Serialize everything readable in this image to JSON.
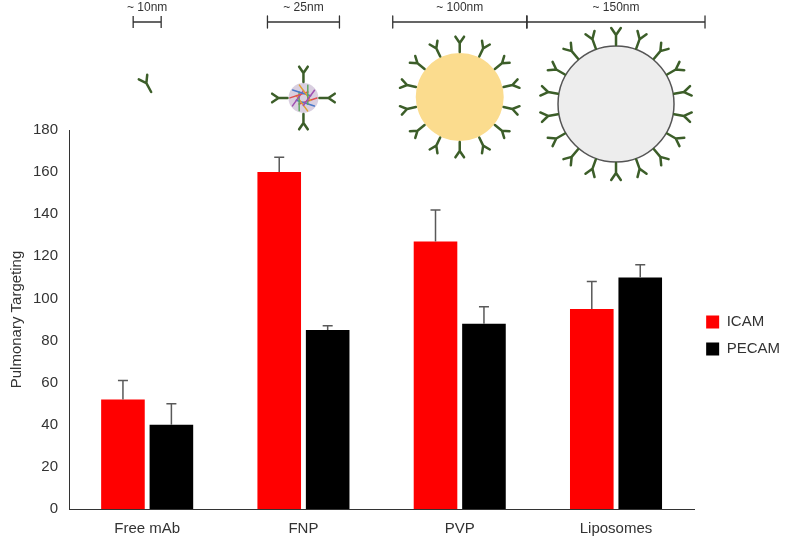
{
  "chart_data": {
    "type": "bar",
    "categories": [
      "Free mAb",
      "FNP",
      "PVP",
      "Liposomes"
    ],
    "y_label": "Pulmonary Targeting",
    "series": [
      {
        "name": "ICAM",
        "color": "#ff0000",
        "values": [
          52,
          160,
          127,
          95
        ],
        "errors": [
          9,
          7,
          15,
          13
        ]
      },
      {
        "name": "PECAM",
        "color": "#000000",
        "values": [
          40,
          85,
          88,
          110
        ],
        "errors": [
          10,
          2,
          8,
          6
        ]
      }
    ],
    "ylim": [
      0,
      180
    ],
    "yticks": [
      0,
      20,
      40,
      60,
      80,
      100,
      120,
      140,
      160,
      180
    ],
    "grid": false,
    "legend": "right",
    "annotations": [
      {
        "category": "Free mAb",
        "text": "~ 10nm"
      },
      {
        "category": "FNP",
        "text": "~ 25nm"
      },
      {
        "category": "PVP",
        "text": "~ 100nm"
      },
      {
        "category": "Liposomes",
        "text": "~ 150nm"
      }
    ]
  }
}
